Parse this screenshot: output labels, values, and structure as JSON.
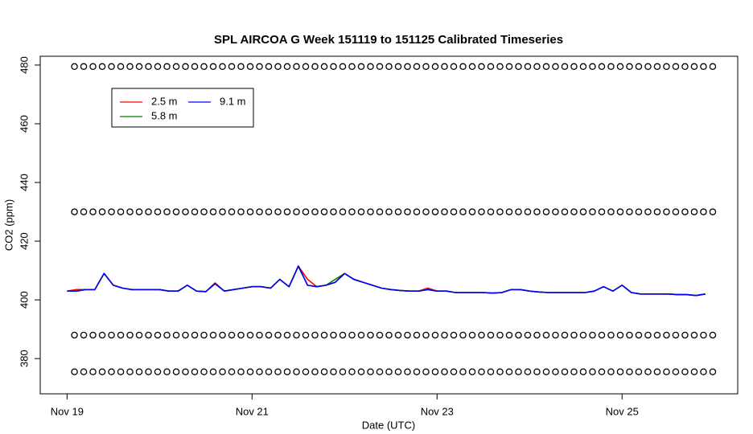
{
  "chart_data": {
    "type": "line",
    "title": "SPL AIRCOA G  Week 151119 to 151125  Calibrated Timeseries",
    "x_label": "Date (UTC)",
    "y_label": "CO2 (ppm)",
    "xlim": [
      18.71,
      26.25
    ],
    "ylim": [
      368,
      483
    ],
    "xticks": [
      {
        "value": 19,
        "label": "Nov 19"
      },
      {
        "value": 21,
        "label": "Nov 21"
      },
      {
        "value": 23,
        "label": "Nov 23"
      },
      {
        "value": 25,
        "label": "Nov 25"
      }
    ],
    "yticks": [
      380,
      400,
      420,
      440,
      460,
      480
    ],
    "legend": "top-left",
    "x": [
      19.0,
      19.1,
      19.2,
      19.3,
      19.4,
      19.5,
      19.6,
      19.7,
      19.8,
      19.9,
      20.0,
      20.1,
      20.2,
      20.3,
      20.4,
      20.5,
      20.6,
      20.7,
      20.8,
      20.9,
      21.0,
      21.1,
      21.2,
      21.3,
      21.4,
      21.5,
      21.6,
      21.7,
      21.8,
      21.9,
      22.0,
      22.1,
      22.2,
      22.3,
      22.4,
      22.5,
      22.6,
      22.7,
      22.8,
      22.9,
      23.0,
      23.1,
      23.2,
      23.3,
      23.4,
      23.5,
      23.6,
      23.7,
      23.8,
      23.9,
      24.0,
      24.1,
      24.2,
      24.3,
      24.4,
      24.5,
      24.6,
      24.7,
      24.8,
      24.9,
      25.0,
      25.1,
      25.2,
      25.3,
      25.4,
      25.5,
      25.6,
      25.7,
      25.8,
      25.9
    ],
    "series": [
      {
        "name": "2.5 m",
        "color": "#ff0000",
        "values": [
          403,
          403.5,
          403.5,
          403.5,
          409,
          405,
          404,
          403.5,
          403.5,
          403.5,
          403.5,
          403,
          403,
          405,
          403,
          402.8,
          405.8,
          403,
          403.5,
          404,
          404.5,
          404.5,
          404,
          407,
          404.5,
          411.5,
          407,
          404.5,
          405,
          406,
          409,
          407,
          406,
          405,
          404,
          403.5,
          403.2,
          403,
          403,
          404,
          403,
          403,
          402.5,
          402.5,
          402.5,
          402.5,
          402.3,
          402.5,
          403.5,
          403.5,
          403,
          402.7,
          402.5,
          402.5,
          402.5,
          402.5,
          402.5,
          403,
          404.5,
          403,
          405,
          402.5,
          402,
          402,
          402,
          402,
          401.8,
          401.8,
          401.5,
          402
        ]
      },
      {
        "name": "5.8 m",
        "color": "#008000",
        "values": [
          403,
          403,
          403.5,
          403.5,
          409,
          405,
          404,
          403.5,
          403.5,
          403.5,
          403.5,
          403,
          403,
          405,
          403,
          402.8,
          405.5,
          403,
          403.5,
          404,
          404.5,
          404.5,
          404,
          407,
          404.5,
          411.5,
          405,
          404.5,
          405,
          407,
          409,
          407,
          406,
          405,
          404,
          403.5,
          403.2,
          403,
          403,
          403.5,
          403,
          403,
          402.5,
          402.5,
          402.5,
          402.5,
          402.3,
          402.5,
          403.5,
          403.5,
          403,
          402.7,
          402.5,
          402.5,
          402.5,
          402.5,
          402.5,
          403,
          404.5,
          403,
          405,
          402.5,
          402,
          402,
          402,
          402,
          401.8,
          401.8,
          401.5,
          402
        ]
      },
      {
        "name": "9.1 m",
        "color": "#0000ff",
        "values": [
          403,
          403,
          403.5,
          403.5,
          409,
          405,
          404,
          403.5,
          403.5,
          403.5,
          403.5,
          403,
          403,
          405,
          403,
          402.8,
          405.5,
          403,
          403.5,
          404,
          404.5,
          404.5,
          404,
          407,
          404.5,
          411.5,
          405,
          404.5,
          405,
          406,
          409,
          407,
          406,
          405,
          404,
          403.5,
          403.2,
          403,
          403,
          403.5,
          403,
          403,
          402.5,
          402.5,
          402.5,
          402.5,
          402.3,
          402.5,
          403.5,
          403.5,
          403,
          402.7,
          402.5,
          402.5,
          402.5,
          402.5,
          402.5,
          403,
          404.5,
          403,
          405,
          402.5,
          402,
          402,
          402,
          402,
          401.8,
          401.8,
          401.5,
          402
        ]
      }
    ],
    "markers": {
      "x": [
        19.08,
        19.18,
        19.28,
        19.38,
        19.48,
        19.58,
        19.68,
        19.78,
        19.88,
        19.98,
        20.08,
        20.18,
        20.28,
        20.38,
        20.48,
        20.58,
        20.68,
        20.78,
        20.88,
        20.98,
        21.08,
        21.18,
        21.28,
        21.38,
        21.48,
        21.58,
        21.68,
        21.78,
        21.88,
        21.98,
        22.08,
        22.18,
        22.28,
        22.38,
        22.48,
        22.58,
        22.68,
        22.78,
        22.88,
        22.98,
        23.08,
        23.18,
        23.28,
        23.38,
        23.48,
        23.58,
        23.68,
        23.78,
        23.88,
        23.98,
        24.08,
        24.18,
        24.28,
        24.38,
        24.48,
        24.58,
        24.68,
        24.78,
        24.88,
        24.98,
        25.08,
        25.18,
        25.28,
        25.38,
        25.48,
        25.58,
        25.68,
        25.78,
        25.88,
        25.98
      ],
      "levels": [
        479.5,
        430,
        388,
        375.5
      ]
    }
  }
}
